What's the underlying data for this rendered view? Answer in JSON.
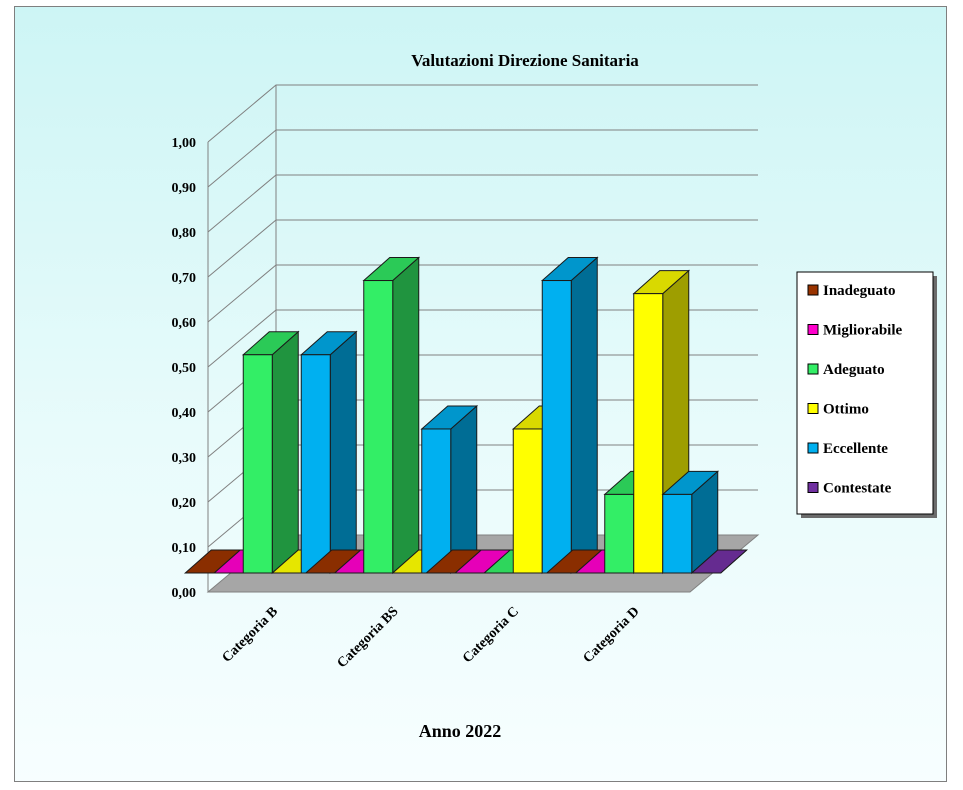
{
  "chart_data": {
    "type": "bar",
    "title": "Valutazioni Direzione Sanitaria",
    "xlabel": "Anno 2022",
    "ylabel": "",
    "ylim": [
      0,
      1
    ],
    "yticks": [
      "0,00",
      "0,10",
      "0,20",
      "0,30",
      "0,40",
      "0,50",
      "0,60",
      "0,70",
      "0,80",
      "0,90",
      "1,00"
    ],
    "categories": [
      "Categoria B",
      "Categoria BS",
      "Categoria C",
      "Categoria D"
    ],
    "series": [
      {
        "name": "Inadeguato",
        "color": "#993300",
        "values": [
          0,
          0,
          0,
          0
        ]
      },
      {
        "name": "Migliorabile",
        "color": "#ff00cc",
        "values": [
          0,
          0,
          0,
          0
        ]
      },
      {
        "name": "Adeguato",
        "color": "#33ee66",
        "values": [
          0.5,
          0.67,
          0,
          0.18
        ]
      },
      {
        "name": "Ottimo",
        "color": "#ffff00",
        "values": [
          0,
          0,
          0.33,
          0.64
        ]
      },
      {
        "name": "Eccellente",
        "color": "#00b0f0",
        "values": [
          0.5,
          0.33,
          0.67,
          0.18
        ]
      },
      {
        "name": "Contestate",
        "color": "#7030a0",
        "values": [
          0,
          0,
          0,
          0
        ]
      }
    ],
    "grid": true,
    "legend": "right",
    "three_d": true
  }
}
